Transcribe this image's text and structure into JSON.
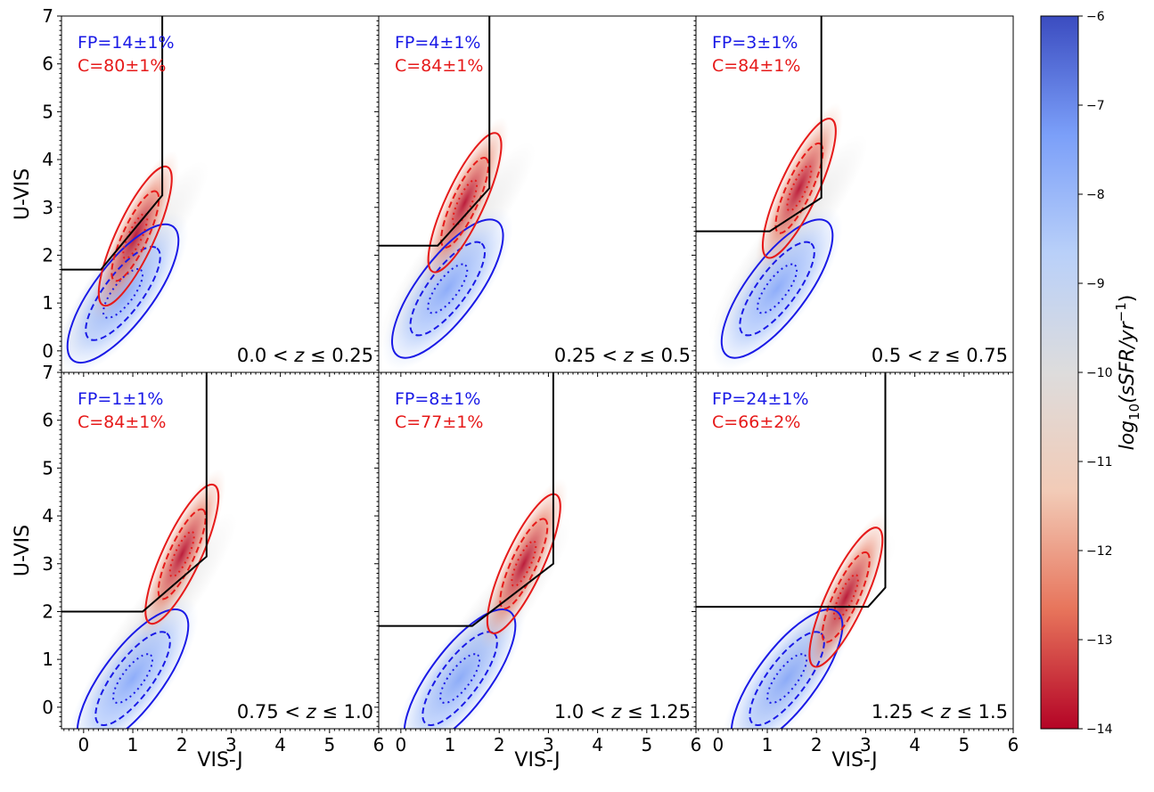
{
  "figure": {
    "x_axis_label": "VIS-J",
    "y_axis_label": "U-VIS",
    "colorbar": {
      "label": "log10(sSFR/yr−1)",
      "label_main": "log",
      "label_sub": "10",
      "label_rest": "(sSFR/yr",
      "label_sup": "−1",
      "label_close": ")",
      "range": [
        -14,
        -6
      ],
      "ticks": [
        -14,
        -13,
        -12,
        -11,
        -10,
        -9,
        -8,
        -7,
        -6
      ],
      "tick_labels": [
        "−14",
        "−13",
        "−12",
        "−11",
        "−10",
        "−9",
        "−8",
        "−7",
        "−6"
      ],
      "colormap": "coolwarm (reversed)",
      "stops": [
        "#b40426",
        "#e7745b",
        "#f2cbb7",
        "#dddcdc",
        "#b9d0f9",
        "#7b9ff9",
        "#3b4cc0"
      ]
    },
    "colors": {
      "fp": "#1a1ae6",
      "c": "#e61a1a",
      "selection_line": "#000000"
    },
    "x_tick_labels": [
      "0",
      "1",
      "2",
      "3",
      "4",
      "5",
      "6"
    ],
    "y_tick_labels": [
      "0",
      "1",
      "2",
      "3",
      "4",
      "5",
      "6",
      "7"
    ]
  },
  "chart_data": [
    {
      "type": "scatter",
      "panel": 1,
      "z_label": "0.0 < z ≤ 0.25",
      "z_lo": "0.0",
      "z_hi": "0.25",
      "fp": "FP=14±1%",
      "c": "C=80±1%",
      "xlim": [
        -0.45,
        6
      ],
      "ylim": [
        -0.45,
        7
      ],
      "selection": {
        "y_floor": 1.7,
        "x_knee": 0.35,
        "x_vert": 1.6,
        "y_top_of_diag": 3.25
      },
      "blue_center": [
        0.8,
        1.2
      ],
      "red_center": [
        1.05,
        2.4
      ]
    },
    {
      "type": "scatter",
      "panel": 2,
      "z_label": "0.25 < z ≤ 0.5",
      "z_lo": "0.25",
      "z_hi": "0.5",
      "fp": "FP=4±1%",
      "c": "C=84±1%",
      "xlim": [
        -0.45,
        6
      ],
      "ylim": [
        -0.45,
        7
      ],
      "selection": {
        "y_floor": 2.2,
        "x_knee": 0.75,
        "x_vert": 1.8,
        "y_top_of_diag": 3.4
      },
      "blue_center": [
        0.95,
        1.3
      ],
      "red_center": [
        1.3,
        3.1
      ]
    },
    {
      "type": "scatter",
      "panel": 3,
      "z_label": "0.5 < z ≤ 0.75",
      "z_lo": "0.5",
      "z_hi": "0.75",
      "fp": "FP=3±1%",
      "c": "C=84±1%",
      "xlim": [
        -0.45,
        6
      ],
      "ylim": [
        -0.45,
        7
      ],
      "selection": {
        "y_floor": 2.5,
        "x_knee": 1.05,
        "x_vert": 2.1,
        "y_top_of_diag": 3.2
      },
      "blue_center": [
        1.2,
        1.3
      ],
      "red_center": [
        1.65,
        3.4
      ]
    },
    {
      "type": "scatter",
      "panel": 4,
      "z_label": "0.75 < z ≤ 1.0",
      "z_lo": "0.75",
      "z_hi": "1.0",
      "fp": "FP=1±1%",
      "c": "C=84±1%",
      "xlim": [
        -0.45,
        6
      ],
      "ylim": [
        -0.45,
        7
      ],
      "selection": {
        "y_floor": 2.0,
        "x_knee": 1.2,
        "x_vert": 2.5,
        "y_top_of_diag": 3.15
      },
      "blue_center": [
        1.0,
        0.6
      ],
      "red_center": [
        2.0,
        3.2
      ]
    },
    {
      "type": "scatter",
      "panel": 5,
      "z_label": "1.0 < z ≤ 1.25",
      "z_lo": "1.0",
      "z_hi": "1.25",
      "fp": "FP=8±1%",
      "c": "C=77±1%",
      "xlim": [
        -0.45,
        6
      ],
      "ylim": [
        -0.45,
        7
      ],
      "selection": {
        "y_floor": 1.7,
        "x_knee": 1.45,
        "x_vert": 3.1,
        "y_top_of_diag": 3.0
      },
      "blue_center": [
        1.2,
        0.6
      ],
      "red_center": [
        2.5,
        3.0
      ]
    },
    {
      "type": "scatter",
      "panel": 6,
      "z_label": "1.25 < z ≤ 1.5",
      "z_lo": "1.25",
      "z_hi": "1.5",
      "fp": "FP=24±1%",
      "c": "C=66±2%",
      "xlim": [
        -0.45,
        6
      ],
      "ylim": [
        -0.45,
        7
      ],
      "selection": {
        "y_floor": 2.1,
        "x_knee": 3.05,
        "x_vert": 3.4,
        "y_top_of_diag": 2.5
      },
      "blue_center": [
        1.4,
        0.6
      ],
      "red_center": [
        2.6,
        2.3
      ]
    }
  ]
}
